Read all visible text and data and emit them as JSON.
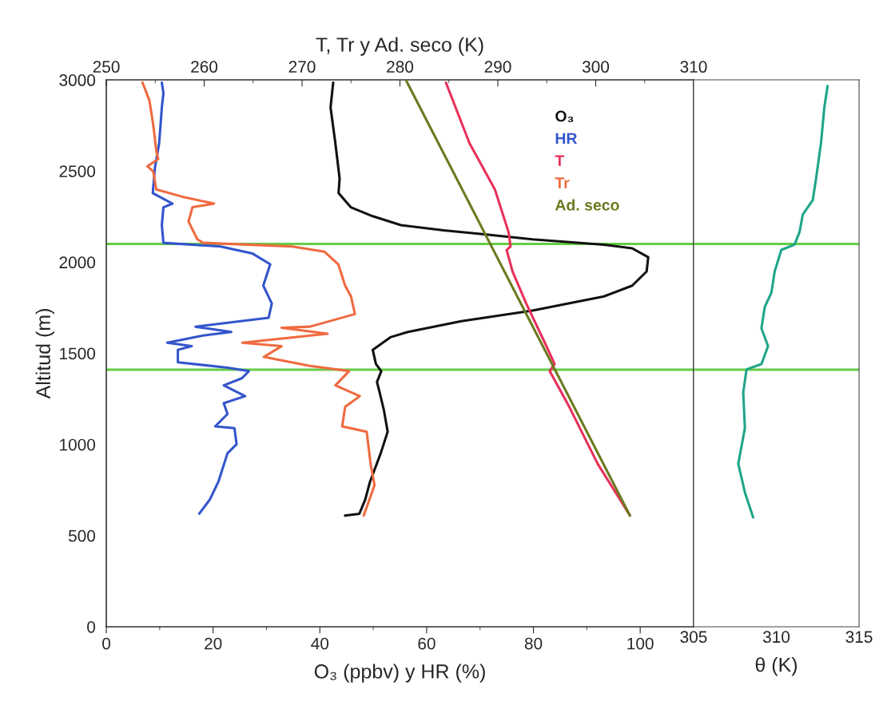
{
  "chart_data": [
    {
      "type": "line",
      "xlabel": "O₃ (ppbv) y HR (%)",
      "x2label": "T, Tr y Ad. seco (K)",
      "ylabel": "Altitud (m)",
      "xlim": [
        0,
        110
      ],
      "xticks": [
        0,
        20,
        40,
        60,
        80,
        100
      ],
      "x2lim": [
        250,
        310
      ],
      "x2ticks": [
        250,
        260,
        270,
        280,
        290,
        300,
        310
      ],
      "ylim": [
        0,
        3000
      ],
      "yticks": [
        0,
        500,
        1000,
        1500,
        2000,
        2500,
        3000
      ],
      "grid": false,
      "legend": "top right",
      "marker": "none",
      "line_style": "solid",
      "ref_lines": [
        {
          "axis": "y",
          "value": 2100,
          "color": "#66cc44"
        },
        {
          "axis": "y",
          "value": 1410,
          "color": "#66cc44"
        }
      ],
      "series": [
        {
          "name": "O₃",
          "color": "#111111",
          "x": [
            42.5,
            42.0,
            42.9,
            43.7,
            43.5,
            45.8,
            49.9,
            55.2,
            63.2,
            70.5,
            79.8,
            93.2,
            98.5,
            101.5,
            101.2,
            98.5,
            93.2,
            79.8,
            66.5,
            56.5,
            53.2,
            49.9,
            50.5,
            51.5,
            50.7,
            51.2,
            52.0,
            52.7,
            51.4,
            49.4,
            48.5,
            47.4,
            44.7
          ],
          "values": [
            2985,
            2849,
            2653,
            2458,
            2379,
            2301,
            2252,
            2203,
            2174,
            2154,
            2125,
            2096,
            2076,
            2027,
            1949,
            1871,
            1812,
            1734,
            1676,
            1617,
            1588,
            1519,
            1441,
            1402,
            1343,
            1285,
            1187,
            1070,
            952,
            796,
            698,
            620,
            610
          ]
        },
        {
          "name": "HR",
          "color": "#3355cc",
          "x": [
            10.4,
            10.7,
            10.4,
            9.9,
            9.1,
            8.7,
            12.4,
            10.7,
            10.4,
            10.7,
            21.4,
            27.4,
            30.7,
            29.4,
            31.0,
            30.4,
            16.7,
            23.4,
            18.1,
            11.4,
            16.0,
            13.4,
            13.4,
            22.7,
            26.7,
            25.4,
            22.0,
            26.0,
            22.0,
            22.7,
            20.4,
            24.0,
            24.4,
            22.7,
            21.0,
            19.4,
            17.4
          ],
          "values": [
            2985,
            2927,
            2849,
            2653,
            2516,
            2379,
            2321,
            2301,
            2203,
            2106,
            2086,
            2047,
            1988,
            1871,
            1773,
            1695,
            1646,
            1617,
            1597,
            1558,
            1539,
            1519,
            1451,
            1421,
            1402,
            1363,
            1324,
            1265,
            1226,
            1167,
            1099,
            1089,
            1001,
            952,
            796,
            698,
            620
          ]
        },
        {
          "name": "T",
          "color": "#e8305a",
          "axis": "x2",
          "x": [
            284.7,
            287.1,
            289.7,
            291.1,
            291.3,
            290.9,
            291.5,
            292.9,
            294.8,
            295.8,
            295.3,
            297.3,
            300.2,
            303.5
          ],
          "values": [
            2985,
            2653,
            2399,
            2164,
            2086,
            2067,
            1949,
            1773,
            1558,
            1441,
            1402,
            1206,
            894,
            610
          ]
        },
        {
          "name": "Tr",
          "color": "#f06a40",
          "axis": "x2",
          "x": [
            253.7,
            254.4,
            254.8,
            255.1,
            255.3,
            254.2,
            254.8,
            255.1,
            257.7,
            261.0,
            258.8,
            258.4,
            259.3,
            259.9,
            269.0,
            272.3,
            273.7,
            274.4,
            275.0,
            275.4,
            270.8,
            267.9,
            272.6,
            263.9,
            267.9,
            266.1,
            270.8,
            274.8,
            273.4,
            275.9,
            274.4,
            274.1,
            276.6,
            277.0,
            277.4,
            276.3
          ],
          "values": [
            2985,
            2888,
            2751,
            2614,
            2565,
            2526,
            2497,
            2399,
            2360,
            2321,
            2301,
            2223,
            2125,
            2106,
            2086,
            2057,
            1988,
            1871,
            1812,
            1715,
            1646,
            1640,
            1607,
            1558,
            1539,
            1480,
            1431,
            1402,
            1324,
            1265,
            1206,
            1099,
            1070,
            894,
            776,
            610
          ]
        },
        {
          "name": "Ad. seco",
          "color": "#6b7a20",
          "axis": "x2",
          "x": [
            280.6,
            303.5
          ],
          "values": [
            3000,
            610
          ]
        }
      ]
    },
    {
      "type": "line",
      "xlabel": "θ (K)",
      "xlim": [
        305,
        315
      ],
      "xticks": [
        305,
        310,
        315
      ],
      "ylim": [
        0,
        3000
      ],
      "yticks": [
        0,
        500,
        1000,
        1500,
        2000,
        2500,
        3000
      ],
      "tick_labels": "x",
      "grid": false,
      "marker": "none",
      "line_style": "solid",
      "ref_lines": [
        {
          "axis": "y",
          "value": 2100,
          "color": "#66cc44"
        },
        {
          "axis": "y",
          "value": 1410,
          "color": "#66cc44"
        }
      ],
      "series": [
        {
          "color": "#1fa58a",
          "x": [
            313.1,
            312.9,
            312.7,
            312.4,
            312.2,
            311.6,
            311.4,
            311.1,
            310.3,
            309.9,
            309.7,
            309.3,
            309.1,
            309.5,
            309.1,
            308.2,
            308.0,
            308.1,
            307.7,
            308.1,
            308.6
          ],
          "values": [
            2966,
            2849,
            2653,
            2458,
            2340,
            2262,
            2164,
            2096,
            2067,
            1949,
            1832,
            1754,
            1637,
            1539,
            1441,
            1412,
            1285,
            1089,
            894,
            737,
            600
          ]
        }
      ]
    }
  ]
}
